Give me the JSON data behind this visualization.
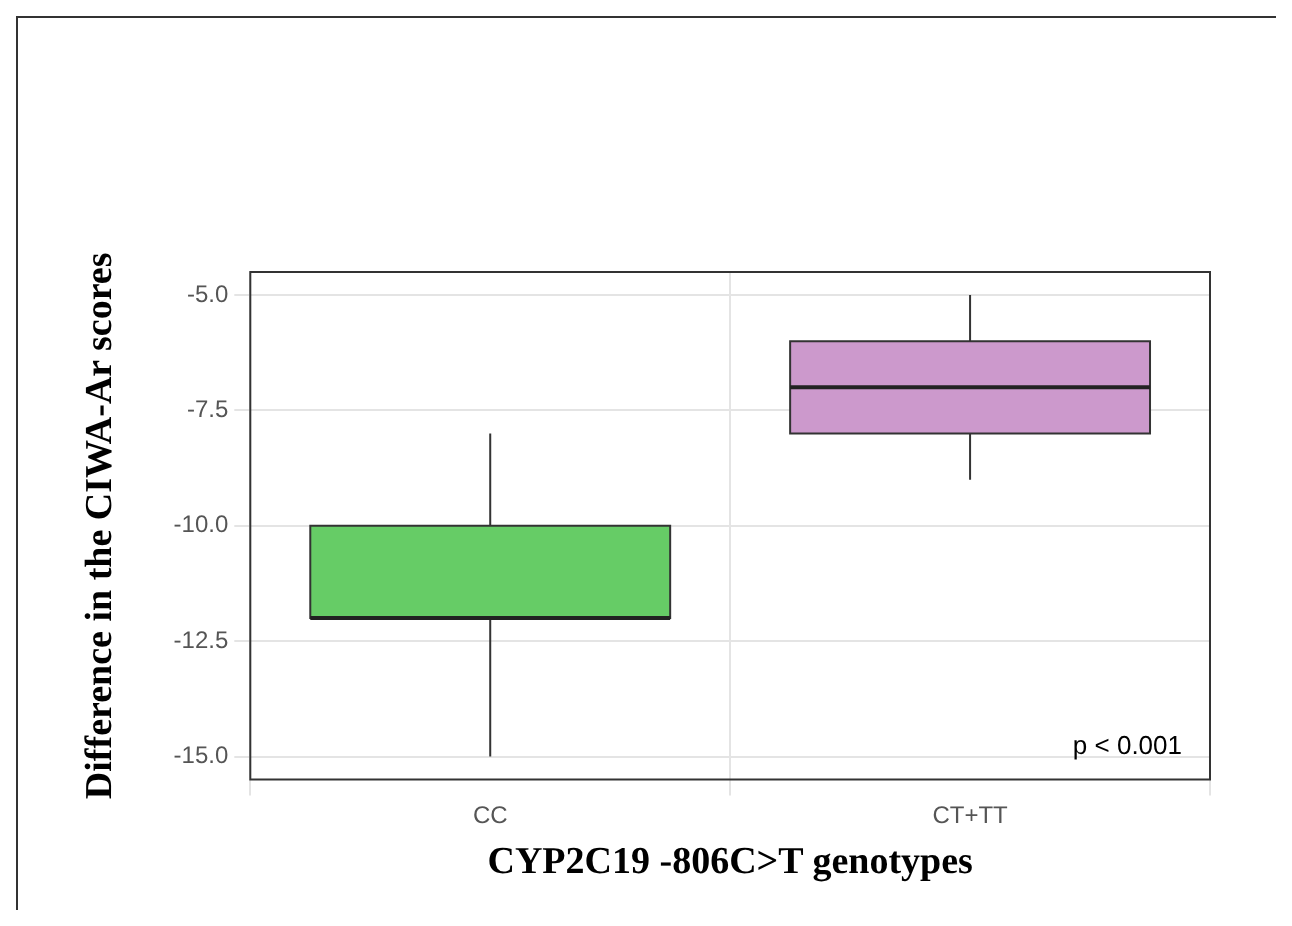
{
  "chart_data": {
    "type": "box",
    "xlabel": "CYP2C19 -806C>T genotypes",
    "ylabel": "Difference in the CIWA-Ar scores",
    "categories": [
      "CC",
      "CT+TT"
    ],
    "colors": [
      "#66cc66",
      "#cc99cc"
    ],
    "boxes": [
      {
        "low": -15,
        "q1": -12,
        "median": -12,
        "q3": -10,
        "high": -8
      },
      {
        "low": -9,
        "q1": -8,
        "median": -7,
        "q3": -6,
        "high": -5
      }
    ],
    "ylim": [
      -15.5,
      -4.5
    ],
    "yticks": [
      {
        "value": -15,
        "label": "-15.0"
      },
      {
        "value": -12.5,
        "label": "-12.5"
      },
      {
        "value": -10,
        "label": "-10.0"
      },
      {
        "value": -7.5,
        "label": "-7.5"
      },
      {
        "value": -5,
        "label": "-5.0"
      }
    ],
    "grid": true,
    "legend": false,
    "annotations": [
      "p < 0.001"
    ]
  }
}
